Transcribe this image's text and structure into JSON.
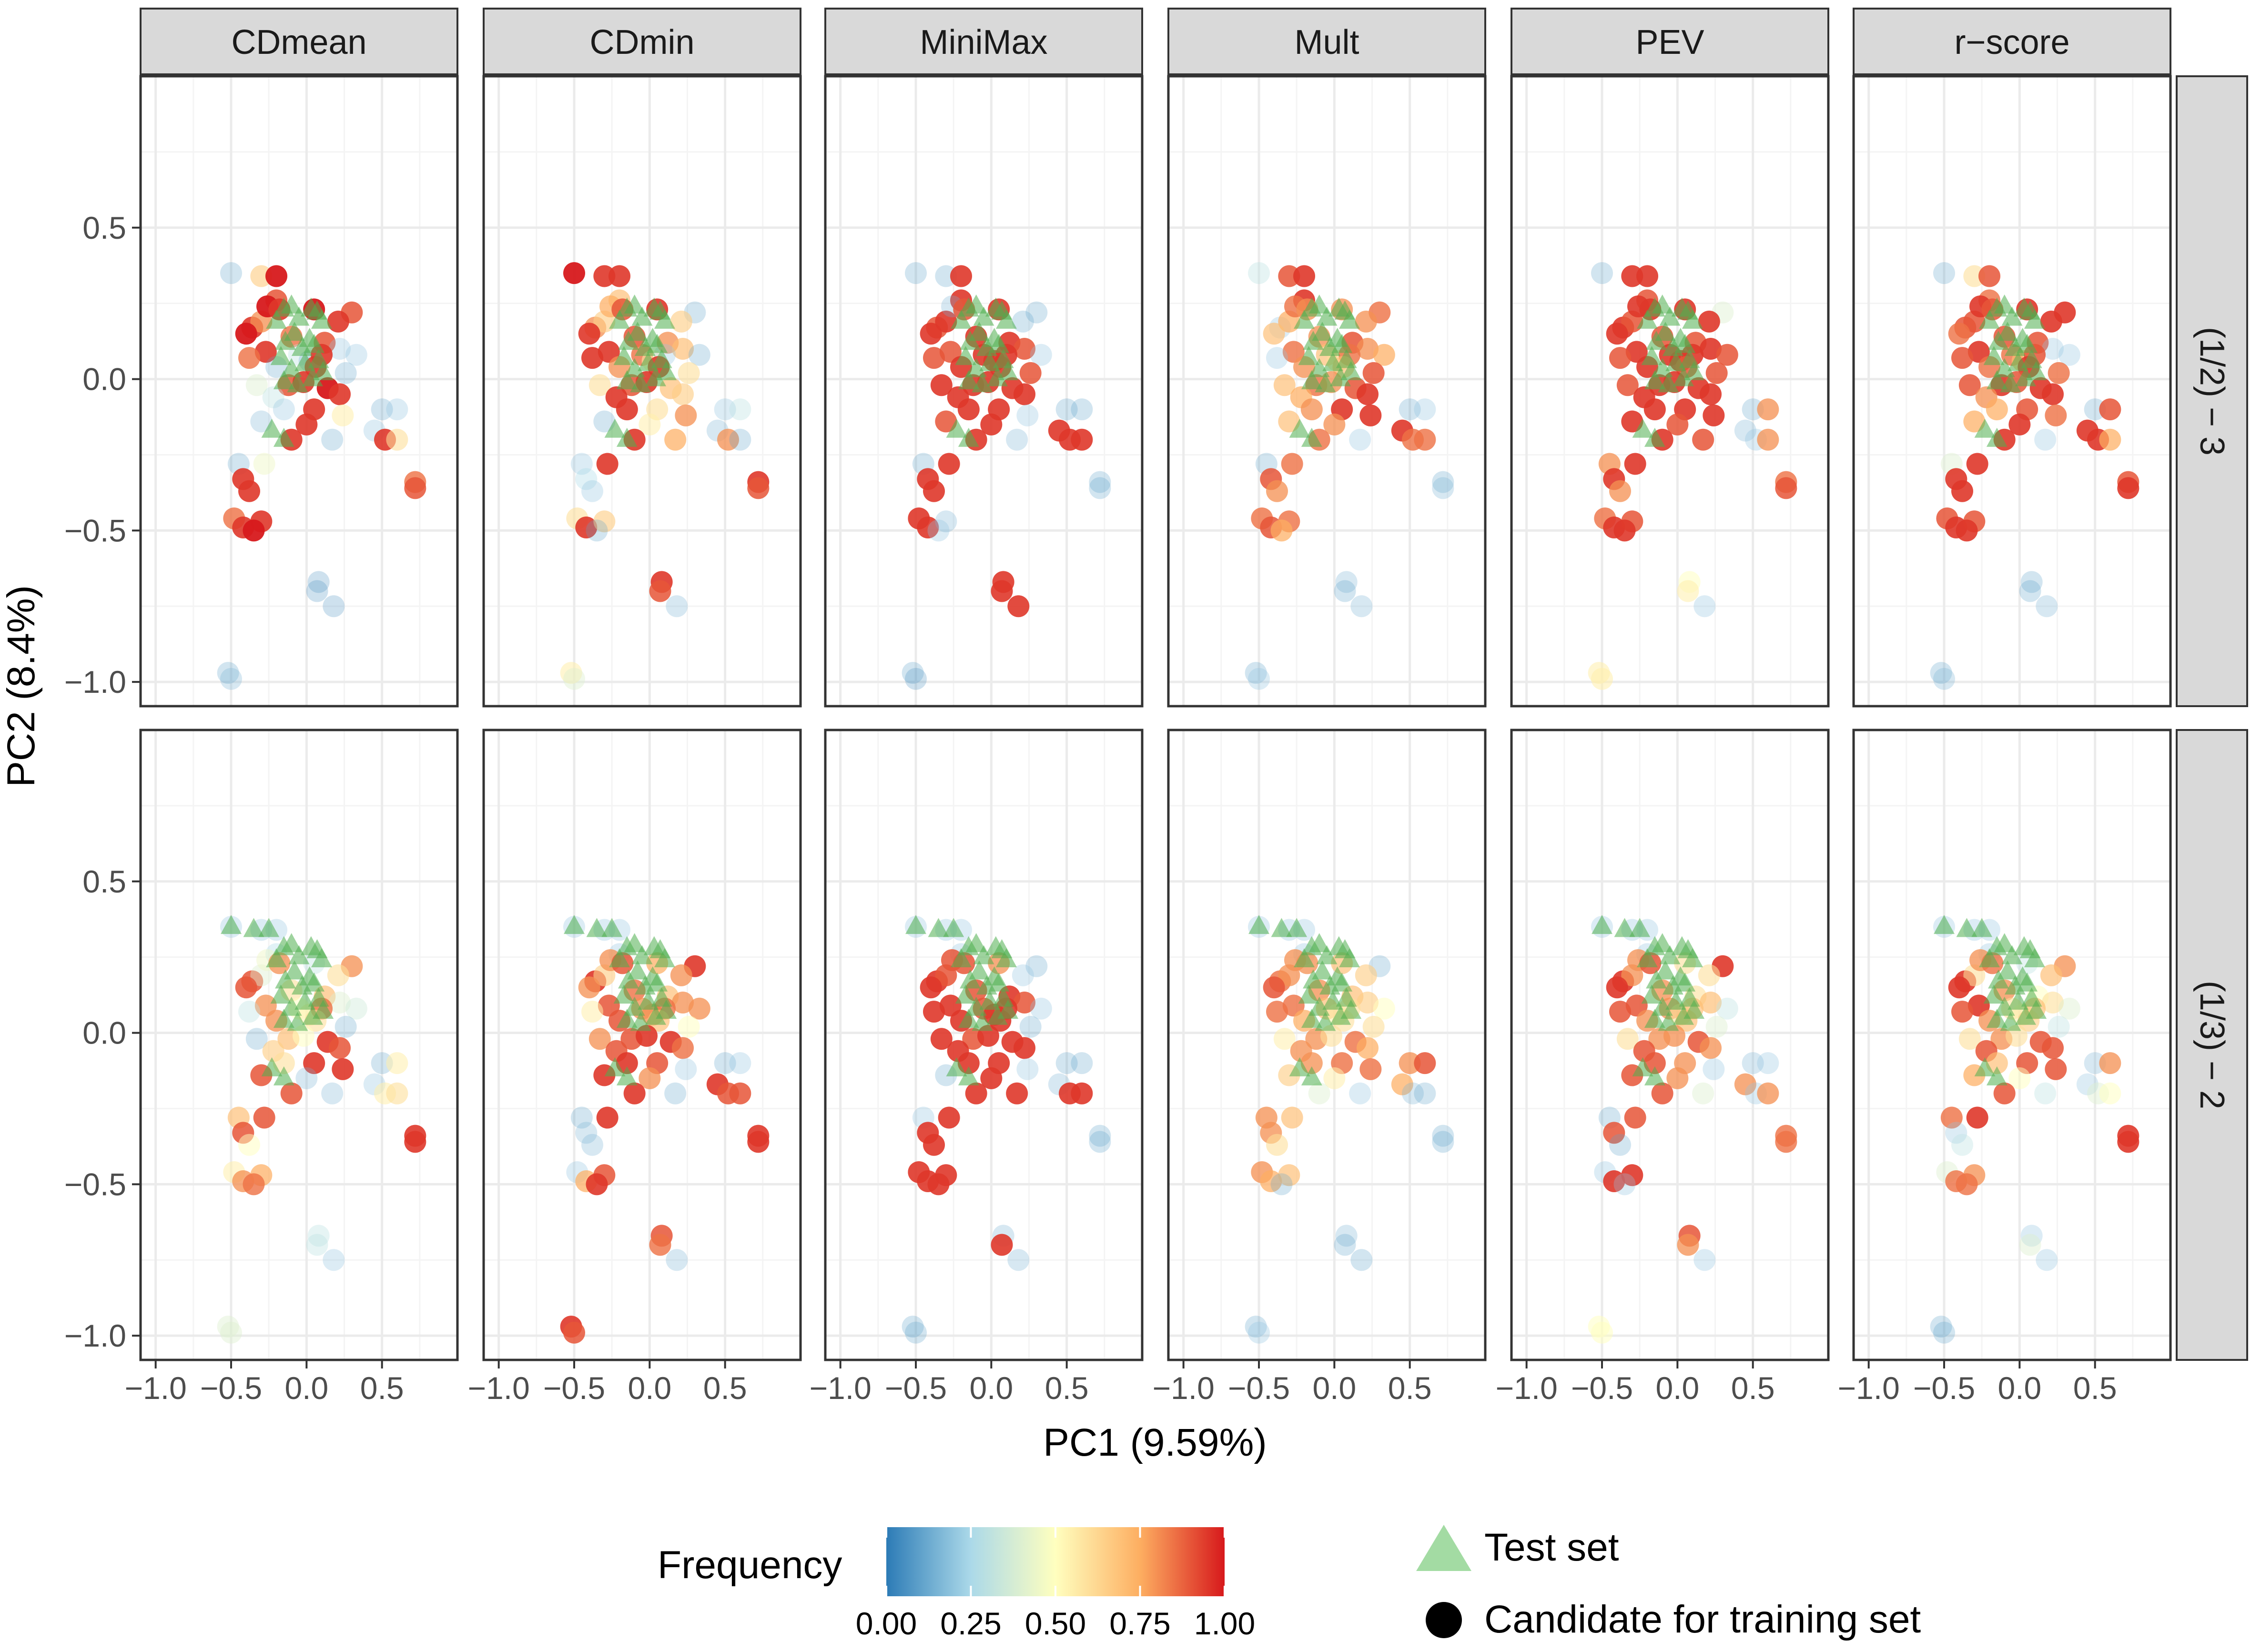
{
  "colors": {
    "test_set": "#7fcd7f",
    "candidate": "#000000",
    "scale": [
      "#2c7bb6",
      "#abd9e9",
      "#ffffbf",
      "#fdae61",
      "#d7191c"
    ]
  },
  "chart_data": {
    "type": "scatter",
    "facets": {
      "columns": [
        "CDmean",
        "CDmin",
        "MiniMax",
        "Mult",
        "PEV",
        "r−score"
      ],
      "rows": [
        "(1/2) − 3",
        "(1/3) − 2"
      ]
    },
    "xlabel": "PC1 (9.59%)",
    "ylabel": "PC2 (8.4%)",
    "xlim": [
      -1.1,
      1.0
    ],
    "ylim": [
      -1.08,
      1.0
    ],
    "x_ticks": [
      -1.0,
      -0.5,
      0.0,
      0.5
    ],
    "x_tick_labels": [
      "−1.0",
      "−0.5",
      "0.0",
      "0.5"
    ],
    "y_ticks": [
      -1.0,
      -0.5,
      0.0,
      0.5
    ],
    "y_tick_labels": [
      "−1.0",
      "−0.5",
      "0.0",
      "0.5"
    ],
    "legend": {
      "frequency_title": "Frequency",
      "frequency_ticks": [
        "0.00",
        "0.25",
        "0.50",
        "0.75",
        "1.00"
      ],
      "shape_entries": [
        "Test set",
        "Candidate for training set"
      ]
    },
    "test_points": [
      [
        -0.15,
        0.23
      ],
      [
        -0.1,
        0.24
      ],
      [
        0.03,
        0.23
      ],
      [
        -0.05,
        0.2
      ],
      [
        0.07,
        0.22
      ],
      [
        -0.2,
        0.19
      ],
      [
        0.1,
        0.19
      ],
      [
        -0.08,
        0.15
      ],
      [
        0.02,
        0.13
      ],
      [
        -0.14,
        0.12
      ],
      [
        -0.03,
        0.1
      ],
      [
        0.05,
        0.11
      ],
      [
        -0.17,
        0.07
      ],
      [
        0.08,
        0.06
      ],
      [
        -0.01,
        0.05
      ],
      [
        -0.1,
        0.03
      ],
      [
        0.04,
        0.0
      ],
      [
        -0.06,
        -0.02
      ],
      [
        0.11,
        0.02
      ],
      [
        -0.15,
        -0.01
      ],
      [
        -0.23,
        -0.17
      ],
      [
        -0.15,
        -0.2
      ]
    ],
    "test_points_lower_offset": [
      0.0,
      0.05
    ],
    "test_points_lower_extra": [
      [
        -0.5,
        0.35
      ],
      [
        -0.35,
        0.34
      ],
      [
        -0.25,
        0.34
      ]
    ],
    "candidates": [
      [
        -0.5,
        0.35
      ],
      [
        -0.3,
        0.34
      ],
      [
        -0.2,
        0.34
      ],
      [
        -0.2,
        0.26
      ],
      [
        -0.36,
        0.17
      ],
      [
        -0.3,
        0.19
      ],
      [
        -0.26,
        0.24
      ],
      [
        -0.18,
        0.23
      ],
      [
        0.05,
        0.23
      ],
      [
        0.3,
        0.22
      ],
      [
        0.21,
        0.19
      ],
      [
        -0.4,
        0.15
      ],
      [
        -0.1,
        0.14
      ],
      [
        0.12,
        0.12
      ],
      [
        0.22,
        0.1
      ],
      [
        -0.27,
        0.09
      ],
      [
        -0.05,
        0.08
      ],
      [
        0.02,
        0.06
      ],
      [
        0.1,
        0.08
      ],
      [
        0.33,
        0.08
      ],
      [
        -0.38,
        0.07
      ],
      [
        -0.2,
        0.04
      ],
      [
        0.06,
        0.04
      ],
      [
        -0.33,
        -0.02
      ],
      [
        -0.12,
        -0.02
      ],
      [
        -0.02,
        -0.01
      ],
      [
        0.14,
        -0.03
      ],
      [
        0.26,
        0.02
      ],
      [
        -0.22,
        -0.06
      ],
      [
        0.22,
        -0.05
      ],
      [
        -0.15,
        -0.1
      ],
      [
        0.05,
        -0.1
      ],
      [
        0.24,
        -0.12
      ],
      [
        -0.3,
        -0.14
      ],
      [
        0.0,
        -0.15
      ],
      [
        0.5,
        -0.1
      ],
      [
        0.6,
        -0.1
      ],
      [
        -0.1,
        -0.2
      ],
      [
        0.17,
        -0.2
      ],
      [
        0.45,
        -0.17
      ],
      [
        0.52,
        -0.2
      ],
      [
        0.6,
        -0.2
      ],
      [
        -0.45,
        -0.28
      ],
      [
        -0.28,
        -0.28
      ],
      [
        -0.42,
        -0.33
      ],
      [
        0.72,
        -0.34
      ],
      [
        0.72,
        -0.36
      ],
      [
        -0.38,
        -0.37
      ],
      [
        -0.48,
        -0.46
      ],
      [
        -0.42,
        -0.49
      ],
      [
        -0.3,
        -0.47
      ],
      [
        -0.35,
        -0.5
      ],
      [
        0.08,
        -0.67
      ],
      [
        0.07,
        -0.7
      ],
      [
        0.18,
        -0.75
      ],
      [
        -0.52,
        -0.97
      ],
      [
        -0.5,
        -0.99
      ]
    ],
    "frequencies": {
      "CDmean|0": [
        0.1,
        0.65,
        1.0,
        0.9,
        0.95,
        0.8,
        1.0,
        0.95,
        1.0,
        0.9,
        0.95,
        1.0,
        0.85,
        0.9,
        0.2,
        0.95,
        0.3,
        0.1,
        0.95,
        0.2,
        0.85,
        0.1,
        0.95,
        0.4,
        0.9,
        0.95,
        1.0,
        0.1,
        0.3,
        0.95,
        0.2,
        0.95,
        0.55,
        0.15,
        0.95,
        0.1,
        0.2,
        0.95,
        0.1,
        0.2,
        0.95,
        0.6,
        0.1,
        0.45,
        0.95,
        0.85,
        0.9,
        0.95,
        0.85,
        0.95,
        0.95,
        1.0,
        0.05,
        0.05,
        0.05,
        0.1,
        0.15
      ],
      "CDmin|0": [
        1.0,
        0.95,
        0.95,
        0.7,
        0.8,
        0.65,
        0.75,
        0.9,
        0.95,
        0.1,
        0.65,
        0.95,
        0.9,
        0.8,
        0.7,
        0.95,
        0.85,
        0.55,
        0.2,
        0.1,
        0.95,
        0.8,
        0.95,
        0.6,
        0.9,
        0.95,
        0.7,
        0.6,
        0.95,
        0.65,
        0.95,
        0.6,
        0.8,
        0.1,
        0.55,
        0.2,
        0.3,
        0.95,
        0.75,
        0.15,
        0.8,
        0.1,
        0.2,
        0.95,
        0.25,
        0.95,
        0.9,
        0.2,
        0.6,
        0.95,
        0.65,
        0.1,
        0.95,
        0.9,
        0.15,
        0.55,
        0.4
      ],
      "MiniMax|0": [
        0.1,
        0.1,
        0.95,
        0.95,
        0.9,
        0.95,
        0.15,
        0.9,
        0.95,
        0.1,
        0.1,
        0.95,
        0.95,
        0.95,
        0.9,
        0.9,
        0.95,
        0.95,
        0.95,
        0.2,
        0.9,
        0.95,
        0.95,
        0.95,
        0.95,
        0.95,
        0.95,
        0.9,
        0.95,
        0.95,
        0.95,
        0.95,
        0.2,
        0.9,
        0.95,
        0.1,
        0.1,
        0.95,
        0.15,
        0.95,
        0.95,
        0.95,
        0.1,
        0.95,
        0.95,
        0.1,
        0.1,
        0.95,
        0.95,
        0.95,
        0.15,
        0.2,
        0.95,
        0.95,
        0.95,
        0.1,
        0.05
      ],
      "Mult|0": [
        0.3,
        0.9,
        0.95,
        0.95,
        0.2,
        0.75,
        0.85,
        0.8,
        0.8,
        0.85,
        0.8,
        0.7,
        0.8,
        0.9,
        0.8,
        0.85,
        0.7,
        0.6,
        0.85,
        0.75,
        0.2,
        0.8,
        0.7,
        0.7,
        0.85,
        0.8,
        0.9,
        0.9,
        0.75,
        0.95,
        0.8,
        0.95,
        0.95,
        0.7,
        0.8,
        0.1,
        0.2,
        0.85,
        0.2,
        0.95,
        0.85,
        0.85,
        0.1,
        0.85,
        0.9,
        0.1,
        0.15,
        0.8,
        0.85,
        0.9,
        0.85,
        0.75,
        0.15,
        0.1,
        0.15,
        0.1,
        0.2
      ],
      "PEV|0": [
        0.1,
        0.95,
        0.95,
        0.9,
        0.95,
        0.9,
        0.95,
        0.95,
        0.95,
        0.4,
        0.95,
        0.95,
        0.9,
        0.9,
        0.95,
        0.95,
        0.95,
        0.95,
        0.95,
        0.9,
        0.9,
        0.95,
        0.9,
        0.9,
        0.95,
        0.95,
        0.95,
        0.9,
        0.95,
        0.95,
        0.95,
        0.95,
        0.95,
        0.95,
        0.9,
        0.1,
        0.8,
        0.95,
        0.9,
        0.15,
        0.2,
        0.8,
        0.8,
        0.95,
        0.95,
        0.85,
        0.9,
        0.8,
        0.85,
        0.95,
        0.9,
        0.95,
        0.5,
        0.55,
        0.2,
        0.55,
        0.55
      ],
      "r−score|0": [
        0.1,
        0.6,
        0.9,
        0.85,
        0.9,
        0.9,
        0.95,
        0.9,
        0.95,
        0.95,
        0.95,
        0.85,
        0.9,
        0.9,
        0.2,
        0.95,
        0.85,
        0.7,
        0.9,
        0.2,
        0.9,
        0.85,
        0.95,
        0.9,
        0.95,
        0.9,
        0.95,
        0.85,
        0.8,
        0.95,
        0.75,
        0.9,
        0.85,
        0.75,
        0.95,
        0.1,
        0.9,
        0.95,
        0.2,
        0.95,
        0.95,
        0.75,
        0.4,
        0.95,
        0.95,
        0.9,
        0.95,
        0.95,
        0.9,
        0.95,
        0.9,
        0.95,
        0.1,
        0.1,
        0.15,
        0.1,
        0.15
      ],
      "CDmean|1": [
        0.2,
        0.2,
        0.2,
        0.25,
        0.9,
        0.4,
        0.45,
        0.8,
        0.3,
        0.8,
        0.6,
        0.9,
        0.6,
        0.7,
        0.4,
        0.8,
        0.5,
        0.55,
        0.85,
        0.35,
        0.3,
        0.8,
        0.6,
        0.1,
        0.7,
        0.5,
        0.95,
        0.1,
        0.65,
        0.9,
        0.6,
        0.95,
        0.95,
        0.9,
        0.15,
        0.1,
        0.55,
        0.9,
        0.15,
        0.2,
        0.55,
        0.6,
        0.7,
        0.9,
        0.9,
        0.95,
        0.95,
        0.5,
        0.55,
        0.8,
        0.75,
        0.85,
        0.3,
        0.3,
        0.2,
        0.4,
        0.4
      ],
      "CDmin|1": [
        0.2,
        0.2,
        0.2,
        0.2,
        0.95,
        0.65,
        0.8,
        0.9,
        0.75,
        0.95,
        0.8,
        0.8,
        0.85,
        0.7,
        0.8,
        0.9,
        0.8,
        0.8,
        0.85,
        0.8,
        0.55,
        0.9,
        0.7,
        0.8,
        0.9,
        0.95,
        0.95,
        0.5,
        0.9,
        0.85,
        0.95,
        0.9,
        0.2,
        0.95,
        0.8,
        0.1,
        0.2,
        0.95,
        0.1,
        0.95,
        0.9,
        0.9,
        0.1,
        0.95,
        0.15,
        0.95,
        0.95,
        0.15,
        0.2,
        0.75,
        0.9,
        0.95,
        0.9,
        0.85,
        0.15,
        0.95,
        0.9
      ],
      "MiniMax|1": [
        0.2,
        0.2,
        0.2,
        0.2,
        0.95,
        0.9,
        0.9,
        0.9,
        0.8,
        0.1,
        0.2,
        0.95,
        0.9,
        0.95,
        0.9,
        0.95,
        0.9,
        0.95,
        0.95,
        0.2,
        0.95,
        0.95,
        0.95,
        0.95,
        0.9,
        0.95,
        0.95,
        0.1,
        0.95,
        0.95,
        0.95,
        0.95,
        0.2,
        0.1,
        0.95,
        0.1,
        0.1,
        0.95,
        0.95,
        0.15,
        0.95,
        0.95,
        0.2,
        0.95,
        0.95,
        0.1,
        0.1,
        0.95,
        0.95,
        0.95,
        0.95,
        0.95,
        0.15,
        0.95,
        0.15,
        0.1,
        0.1
      ],
      "Mult|1": [
        0.2,
        0.2,
        0.2,
        0.2,
        0.85,
        0.8,
        0.8,
        0.8,
        0.7,
        0.1,
        0.65,
        0.9,
        0.8,
        0.7,
        0.65,
        0.85,
        0.7,
        0.55,
        0.6,
        0.5,
        0.85,
        0.75,
        0.6,
        0.55,
        0.8,
        0.6,
        0.85,
        0.6,
        0.8,
        0.75,
        0.8,
        0.85,
        0.85,
        0.65,
        0.55,
        0.8,
        0.9,
        0.4,
        0.2,
        0.75,
        0.15,
        0.1,
        0.8,
        0.7,
        0.8,
        0.1,
        0.1,
        0.6,
        0.8,
        0.75,
        0.7,
        0.1,
        0.15,
        0.1,
        0.1,
        0.1,
        0.2
      ],
      "PEV|1": [
        0.2,
        0.2,
        0.2,
        0.2,
        0.95,
        0.8,
        0.8,
        0.9,
        0.6,
        0.95,
        0.6,
        0.95,
        0.8,
        0.6,
        0.7,
        0.9,
        0.8,
        0.6,
        0.7,
        0.3,
        0.9,
        0.8,
        0.7,
        0.6,
        0.8,
        0.8,
        0.9,
        0.4,
        0.9,
        0.8,
        0.9,
        0.8,
        0.2,
        0.9,
        0.8,
        0.15,
        0.2,
        0.9,
        0.4,
        0.8,
        0.2,
        0.8,
        0.1,
        0.9,
        0.9,
        0.85,
        0.85,
        0.1,
        0.2,
        0.95,
        0.95,
        0.2,
        0.9,
        0.8,
        0.2,
        0.5,
        0.5
      ],
      "r−score|1": [
        0.2,
        0.2,
        0.2,
        0.2,
        0.95,
        0.6,
        0.8,
        0.85,
        0.3,
        0.8,
        0.7,
        0.95,
        0.8,
        0.5,
        0.6,
        0.95,
        0.6,
        0.55,
        0.7,
        0.4,
        0.9,
        0.8,
        0.65,
        0.6,
        0.8,
        0.6,
        0.9,
        0.3,
        0.9,
        0.9,
        0.7,
        0.9,
        0.9,
        0.75,
        0.5,
        0.15,
        0.8,
        0.9,
        0.3,
        0.2,
        0.4,
        0.5,
        0.85,
        0.95,
        0.2,
        0.95,
        0.95,
        0.3,
        0.4,
        0.85,
        0.8,
        0.85,
        0.2,
        0.4,
        0.2,
        0.1,
        0.1
      ]
    }
  }
}
